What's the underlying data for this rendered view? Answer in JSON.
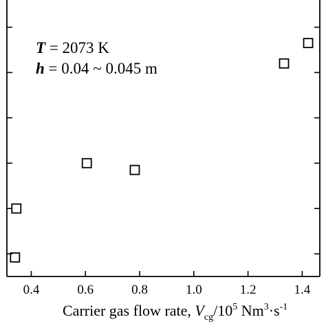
{
  "chart_data": {
    "type": "scatter",
    "series": [
      {
        "marker": "open-square",
        "color": "#000000",
        "points": [
          {
            "x": 0.34,
            "y": 0.42
          },
          {
            "x": 0.345,
            "y": 1.5
          },
          {
            "x": 0.605,
            "y": 2.5
          },
          {
            "x": 0.782,
            "y": 2.35
          },
          {
            "x": 1.333,
            "y": 4.7
          },
          {
            "x": 1.422,
            "y": 5.15
          }
        ]
      }
    ],
    "x_axis": {
      "range": [
        0.31,
        1.465
      ],
      "ticks": [
        0.4,
        0.6,
        0.8,
        1.0,
        1.2,
        1.4
      ],
      "tick_labels": [
        "0.4",
        "0.6",
        "0.8",
        "1.0",
        "1.2",
        "1.4"
      ],
      "label": {
        "prefix": "Carrier gas flow rate, ",
        "var": "V",
        "sub": "cg",
        "mid": "/10",
        "sup1": "5",
        "unit": " Nm",
        "sup2": "3",
        "tail": "·s",
        "sup3": "-1"
      }
    },
    "y_axis": {
      "range": [
        0,
        6.1
      ],
      "ticks": [
        0.5,
        1.5,
        2.5,
        3.5,
        4.5,
        5.5
      ],
      "tick_labels": []
    },
    "annotations": [
      {
        "var": "T",
        "text": " = 2073 K"
      },
      {
        "var": "h",
        "text": " = 0.04 ~ 0.045 m"
      }
    ],
    "grid": false,
    "legend": "none"
  }
}
